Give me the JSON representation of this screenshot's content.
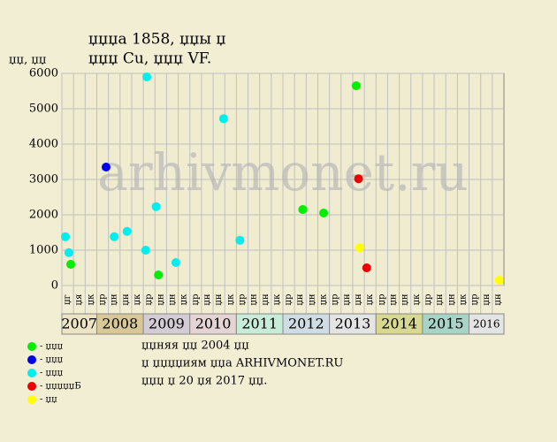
{
  "chart_data": {
    "type": "scatter",
    "title": "џџџа 1858, џџы џ",
    "subtitle": "џџџ Cu, џџџ VF.",
    "y_label": "џџ, џџ",
    "watermark": "arhivmonet.ru",
    "ylim": [
      0,
      6000
    ],
    "yticks": [
      0,
      1000,
      2000,
      3000,
      4000,
      5000,
      6000
    ],
    "grid": true,
    "xlim": [
      0,
      38
    ],
    "categories": [
      "џг",
      "џя",
      "џк",
      "џр",
      "џн",
      "џн",
      "џк",
      "џр",
      "џн",
      "џн",
      "џк",
      "џр",
      "џн",
      "џн",
      "џк",
      "џр",
      "џн",
      "џн",
      "џк",
      "џр",
      "џн",
      "џн",
      "џк",
      "џр",
      "џн",
      "џн",
      "џк",
      "џр",
      "џн",
      "џн",
      "џк",
      "џр",
      "џн",
      "џн",
      "џк",
      "џр",
      "џн",
      "џн"
    ],
    "years": [
      {
        "label": "2007",
        "start": 0,
        "span": 3,
        "color": "#ece4c4"
      },
      {
        "label": "2008",
        "start": 3,
        "span": 4,
        "color": "#d8c898"
      },
      {
        "label": "2009",
        "start": 7,
        "span": 4,
        "color": "#d4ccd4"
      },
      {
        "label": "2010",
        "start": 11,
        "span": 4,
        "color": "#e4d4d4"
      },
      {
        "label": "2011",
        "start": 15,
        "span": 4,
        "color": "#c8ecd8"
      },
      {
        "label": "2012",
        "start": 19,
        "span": 4,
        "color": "#d0dce4"
      },
      {
        "label": "2013",
        "start": 23,
        "span": 4,
        "color": "#e4e4e4"
      },
      {
        "label": "2014",
        "start": 27,
        "span": 4,
        "color": "#d8d890"
      },
      {
        "label": "2015",
        "start": 31,
        "span": 4,
        "color": "#a8d4c8"
      },
      {
        "label": "2016",
        "start": 35,
        "span": 3,
        "color": "#e4e4e4"
      }
    ],
    "series": [
      {
        "name": "- џџџ",
        "color": "#00ee00",
        "x": [
          0.76,
          8.3,
          20.7,
          22.5,
          25.3
        ],
        "values": [
          600,
          300,
          2150,
          2050,
          5650
        ]
      },
      {
        "name": "- џџџ",
        "color": "#0000ee",
        "x": [
          3.8
        ],
        "values": [
          3350
        ]
      },
      {
        "name": "- џџџ",
        "color": "#00eeee",
        "x": [
          0.3,
          0.6,
          4.5,
          5.6,
          7.3,
          7.2,
          8.1,
          9.8,
          13.9,
          15.3
        ],
        "values": [
          1380,
          930,
          1380,
          1530,
          5900,
          1000,
          2230,
          650,
          4720,
          1280
        ]
      },
      {
        "name": "- џџџџџБ",
        "color": "#ee0000",
        "x": [
          25.5,
          26.2
        ],
        "values": [
          3020,
          500
        ]
      },
      {
        "name": "- џџ",
        "color": "#ffff00",
        "x": [
          25.6,
          37.6
        ],
        "values": [
          1070,
          150
        ]
      }
    ],
    "notes": [
      "џџняя џџ 2004 џџ",
      "џ џџџџиям џџа ARHIVMONET.RU",
      "џџџ џ 20 џя 2017 џџ."
    ]
  }
}
